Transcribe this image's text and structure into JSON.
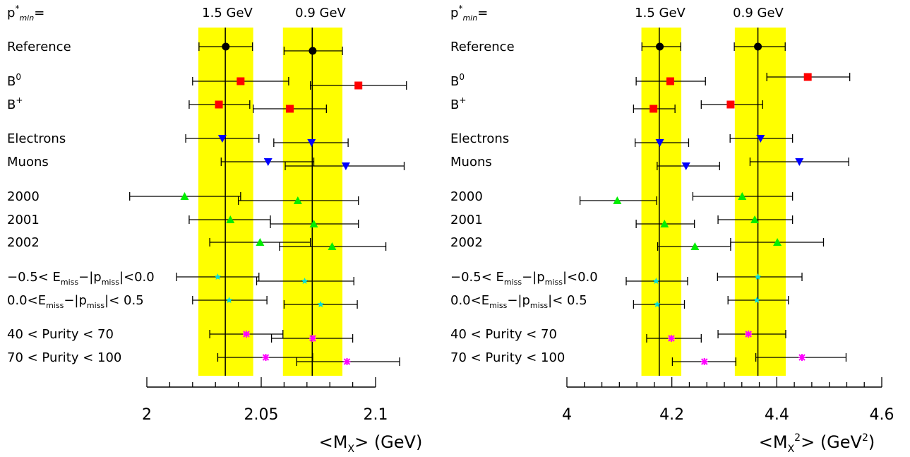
{
  "chart_data": [
    {
      "type": "scatter",
      "xlim": [
        2.0,
        2.1
      ],
      "xticks": [
        "2",
        "2.05",
        "2.1"
      ],
      "xlabel": {
        "pre": "<M",
        "sub": "X",
        "post": "> (GeV)"
      },
      "header": {
        "p": "p",
        "sup": "*",
        "sub": "min",
        "eq": "=",
        "col1": "1.5 GeV",
        "col2": "0.9 GeV"
      },
      "bands": [
        {
          "center": 2.0343,
          "lo": 2.0225,
          "hi": 2.0465
        },
        {
          "center": 2.0723,
          "lo": 2.0595,
          "hi": 2.0855
        }
      ],
      "rows": [
        {
          "label": "Reference",
          "points": [
            {
              "x": 2.0345,
              "xlo": 2.0228,
              "xhi": 2.0462,
              "dy": 0,
              "marker": "circle",
              "color": "#000000"
            },
            {
              "x": 2.0725,
              "xlo": 2.06,
              "xhi": 2.0855,
              "dy": 6,
              "marker": "circle",
              "color": "#000000"
            }
          ]
        },
        {
          "label": "B0",
          "points": [
            {
              "x": 2.041,
              "xlo": 2.02,
              "xhi": 2.062,
              "dy": 0,
              "marker": "square",
              "color": "#ff0000"
            },
            {
              "x": 2.0925,
              "xlo": 2.0715,
              "xhi": 2.1135,
              "dy": 6,
              "marker": "square",
              "color": "#ff0000"
            }
          ]
        },
        {
          "label": "B+",
          "points": [
            {
              "x": 2.0315,
              "xlo": 2.0185,
              "xhi": 2.045,
              "dy": 0,
              "marker": "square",
              "color": "#ff0000"
            },
            {
              "x": 2.0625,
              "xlo": 2.0465,
              "xhi": 2.0785,
              "dy": 6,
              "marker": "square",
              "color": "#ff0000"
            }
          ]
        },
        {
          "label": "Electrons",
          "points": [
            {
              "x": 2.033,
              "xlo": 2.017,
              "xhi": 2.049,
              "dy": 0,
              "marker": "triangle-down",
              "color": "#0000ff"
            },
            {
              "x": 2.072,
              "xlo": 2.0555,
              "xhi": 2.088,
              "dy": 6,
              "marker": "triangle-down",
              "color": "#0000ff"
            }
          ]
        },
        {
          "label": "Muons",
          "points": [
            {
              "x": 2.053,
              "xlo": 2.0325,
              "xhi": 2.073,
              "dy": 0,
              "marker": "triangle-down",
              "color": "#0000ff"
            },
            {
              "x": 2.087,
              "xlo": 2.0605,
              "xhi": 2.1125,
              "dy": 6,
              "marker": "triangle-down",
              "color": "#0000ff"
            }
          ]
        },
        {
          "label": "2000",
          "points": [
            {
              "x": 2.0165,
              "xlo": 1.9925,
              "xhi": 2.041,
              "dy": 0,
              "marker": "triangle-up",
              "color": "#00ee00"
            },
            {
              "x": 2.066,
              "xlo": 2.04,
              "xhi": 2.0925,
              "dy": 6,
              "marker": "triangle-up",
              "color": "#00ee00"
            }
          ]
        },
        {
          "label": "2001",
          "points": [
            {
              "x": 2.0365,
              "xlo": 2.0185,
              "xhi": 2.054,
              "dy": 0,
              "marker": "triangle-up",
              "color": "#00ee00"
            },
            {
              "x": 2.073,
              "xlo": 2.054,
              "xhi": 2.0925,
              "dy": 6,
              "marker": "triangle-up",
              "color": "#00ee00"
            }
          ]
        },
        {
          "label": "2002",
          "points": [
            {
              "x": 2.0495,
              "xlo": 2.0275,
              "xhi": 2.0715,
              "dy": 0,
              "marker": "triangle-up",
              "color": "#00ee00"
            },
            {
              "x": 2.081,
              "xlo": 2.058,
              "xhi": 2.1045,
              "dy": 6,
              "marker": "triangle-up",
              "color": "#00ee00"
            }
          ]
        },
        {
          "label": "-0.5< E_miss-|p_miss|<0.0",
          "points": [
            {
              "x": 2.031,
              "xlo": 2.013,
              "xhi": 2.049,
              "dy": 0,
              "marker": "star",
              "color": "#00dddd"
            },
            {
              "x": 2.069,
              "xlo": 2.048,
              "xhi": 2.0905,
              "dy": 6,
              "marker": "star",
              "color": "#00dddd"
            }
          ]
        },
        {
          "label": "0.0<E_miss-|p_miss|< 0.5",
          "points": [
            {
              "x": 2.036,
              "xlo": 2.02,
              "xhi": 2.0525,
              "dy": 0,
              "marker": "star",
              "color": "#00dddd"
            },
            {
              "x": 2.076,
              "xlo": 2.06,
              "xhi": 2.092,
              "dy": 6,
              "marker": "star",
              "color": "#00dddd"
            }
          ]
        },
        {
          "label": "40 < Purity < 70",
          "points": [
            {
              "x": 2.0435,
              "xlo": 2.0275,
              "xhi": 2.0595,
              "dy": 0,
              "marker": "asterisk",
              "color": "#ff00ff"
            },
            {
              "x": 2.0725,
              "xlo": 2.0545,
              "xhi": 2.09,
              "dy": 6,
              "marker": "asterisk",
              "color": "#ff00ff"
            }
          ]
        },
        {
          "label": "70 < Purity < 100",
          "points": [
            {
              "x": 2.052,
              "xlo": 2.031,
              "xhi": 2.0725,
              "dy": 0,
              "marker": "asterisk",
              "color": "#ff00ff"
            },
            {
              "x": 2.0875,
              "xlo": 2.0655,
              "xhi": 2.1105,
              "dy": 6,
              "marker": "asterisk",
              "color": "#ff00ff"
            }
          ]
        }
      ]
    },
    {
      "type": "scatter",
      "xlim": [
        4.0,
        4.6
      ],
      "xticks": [
        "4",
        "4.2",
        "4.4",
        "4.6"
      ],
      "xlabel": {
        "pre": "<M",
        "sub": "X",
        "sup": "2",
        "post": "> (GeV",
        "postsup": "2",
        "end": ")"
      },
      "header": {
        "p": "p",
        "sup": "*",
        "sub": "min",
        "eq": "=",
        "col1": "1.5 GeV",
        "col2": "0.9 GeV"
      },
      "bands": [
        {
          "center": 4.176,
          "lo": 4.142,
          "hi": 4.218
        },
        {
          "center": 4.364,
          "lo": 4.32,
          "hi": 4.417
        }
      ],
      "rows": [
        {
          "label": "Reference",
          "points": [
            {
              "x": 4.177,
              "xlo": 4.143,
              "xhi": 4.217,
              "dy": 0,
              "marker": "circle",
              "color": "#000000"
            },
            {
              "x": 4.364,
              "xlo": 4.319,
              "xhi": 4.416,
              "dy": 0,
              "marker": "circle",
              "color": "#000000"
            }
          ]
        },
        {
          "label": "B0",
          "points": [
            {
              "x": 4.197,
              "xlo": 4.132,
              "xhi": 4.264,
              "dy": 0,
              "marker": "square",
              "color": "#ff0000"
            },
            {
              "x": 4.459,
              "xlo": 4.381,
              "xhi": 4.539,
              "dy": -6,
              "marker": "square",
              "color": "#ff0000"
            }
          ]
        },
        {
          "label": "B+",
          "points": [
            {
              "x": 4.165,
              "xlo": 4.127,
              "xhi": 4.206,
              "dy": 6,
              "marker": "square",
              "color": "#ff0000"
            },
            {
              "x": 4.312,
              "xlo": 4.256,
              "xhi": 4.373,
              "dy": 0,
              "marker": "square",
              "color": "#ff0000"
            }
          ]
        },
        {
          "label": "Electrons",
          "points": [
            {
              "x": 4.177,
              "xlo": 4.13,
              "xhi": 4.232,
              "dy": 6,
              "marker": "triangle-down",
              "color": "#0000ff"
            },
            {
              "x": 4.369,
              "xlo": 4.311,
              "xhi": 4.43,
              "dy": 0,
              "marker": "triangle-down",
              "color": "#0000ff"
            }
          ]
        },
        {
          "label": "Muons",
          "points": [
            {
              "x": 4.227,
              "xlo": 4.172,
              "xhi": 4.291,
              "dy": 6,
              "marker": "triangle-down",
              "color": "#0000ff"
            },
            {
              "x": 4.443,
              "xlo": 4.349,
              "xhi": 4.537,
              "dy": 0,
              "marker": "triangle-down",
              "color": "#0000ff"
            }
          ]
        },
        {
          "label": "2000",
          "points": [
            {
              "x": 4.096,
              "xlo": 4.025,
              "xhi": 4.171,
              "dy": 6,
              "marker": "triangle-up",
              "color": "#00ee00"
            },
            {
              "x": 4.334,
              "xlo": 4.24,
              "xhi": 4.43,
              "dy": 0,
              "marker": "triangle-up",
              "color": "#00ee00"
            }
          ]
        },
        {
          "label": "2001",
          "points": [
            {
              "x": 4.186,
              "xlo": 4.132,
              "xhi": 4.243,
              "dy": 6,
              "marker": "triangle-up",
              "color": "#00ee00"
            },
            {
              "x": 4.358,
              "xlo": 4.288,
              "xhi": 4.43,
              "dy": 0,
              "marker": "triangle-up",
              "color": "#00ee00"
            }
          ]
        },
        {
          "label": "2002",
          "points": [
            {
              "x": 4.244,
              "xlo": 4.173,
              "xhi": 4.312,
              "dy": 6,
              "marker": "triangle-up",
              "color": "#00ee00"
            },
            {
              "x": 4.401,
              "xlo": 4.312,
              "xhi": 4.489,
              "dy": 0,
              "marker": "triangle-up",
              "color": "#00ee00"
            }
          ]
        },
        {
          "label": "-0.5< E_miss-|p_miss|<0.0",
          "points": [
            {
              "x": 4.17,
              "xlo": 4.113,
              "xhi": 4.23,
              "dy": 6,
              "marker": "star",
              "color": "#00dddd"
            },
            {
              "x": 4.364,
              "xlo": 4.287,
              "xhi": 4.448,
              "dy": 0,
              "marker": "star",
              "color": "#00dddd"
            }
          ]
        },
        {
          "label": "0.0<E_miss-|p_miss|< 0.5",
          "points": [
            {
              "x": 4.172,
              "xlo": 4.127,
              "xhi": 4.224,
              "dy": 6,
              "marker": "star",
              "color": "#00dddd"
            },
            {
              "x": 4.362,
              "xlo": 4.307,
              "xhi": 4.422,
              "dy": 0,
              "marker": "star",
              "color": "#00dddd"
            }
          ]
        },
        {
          "label": "40 < Purity < 70",
          "points": [
            {
              "x": 4.199,
              "xlo": 4.152,
              "xhi": 4.256,
              "dy": 6,
              "marker": "asterisk",
              "color": "#ff00ff"
            },
            {
              "x": 4.346,
              "xlo": 4.288,
              "xhi": 4.417,
              "dy": 0,
              "marker": "asterisk",
              "color": "#ff00ff"
            }
          ]
        },
        {
          "label": "70 < Purity < 100",
          "points": [
            {
              "x": 4.262,
              "xlo": 4.201,
              "xhi": 4.322,
              "dy": 6,
              "marker": "asterisk",
              "color": "#ff00ff"
            },
            {
              "x": 4.448,
              "xlo": 4.36,
              "xhi": 4.532,
              "dy": 0,
              "marker": "asterisk",
              "color": "#ff00ff"
            }
          ]
        }
      ]
    }
  ],
  "colors": {
    "band": "#ffff00",
    "line": "#000000"
  }
}
